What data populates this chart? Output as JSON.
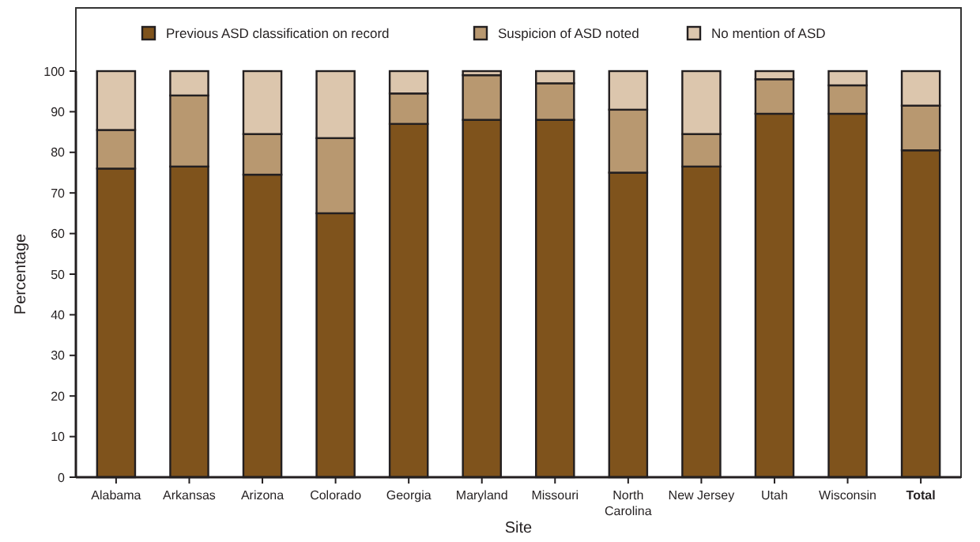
{
  "chart_data": {
    "type": "bar",
    "stacked": true,
    "xlabel": "Site",
    "ylabel": "Percentage",
    "categories": [
      "Alabama",
      "Arkansas",
      "Arizona",
      "Colorado",
      "Georgia",
      "Maryland",
      "Missouri",
      "North Carolina",
      "New Jersey",
      "Utah",
      "Wisconsin",
      "Total"
    ],
    "series": [
      {
        "name": "Previous ASD classification on record",
        "color": "#7f531c",
        "values": [
          76,
          76.5,
          74.5,
          65,
          87,
          88,
          88,
          75,
          76.5,
          89.5,
          89.5,
          80.5
        ]
      },
      {
        "name": "Suspicion of ASD noted",
        "color": "#b89870",
        "values": [
          9.5,
          17.5,
          10,
          18.5,
          7.5,
          11,
          9,
          15.5,
          8,
          8.5,
          7,
          11
        ]
      },
      {
        "name": "No mention of ASD",
        "color": "#dcc6ad",
        "values": [
          14.5,
          6,
          15.5,
          16.5,
          5.5,
          1,
          3,
          9.5,
          15.5,
          2,
          3.5,
          8.5
        ]
      }
    ],
    "ylim": [
      0,
      100
    ],
    "yticks": [
      0,
      10,
      20,
      30,
      40,
      50,
      60,
      70,
      80,
      90,
      100
    ],
    "grid": false,
    "legend": "top"
  }
}
